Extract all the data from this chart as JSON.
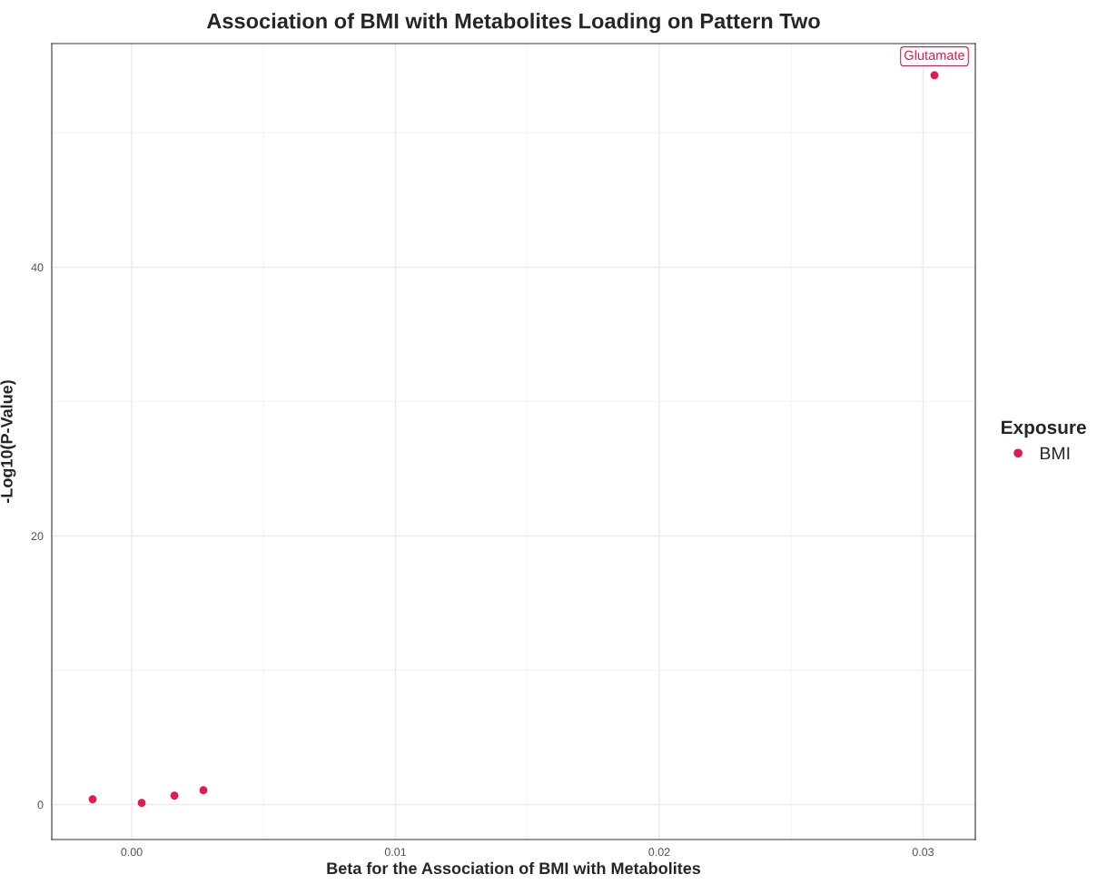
{
  "chart_data": {
    "type": "scatter",
    "title": "Association of BMI with Metabolites Loading on Pattern Two",
    "xlabel": "Beta for the Association of BMI with Metabolites",
    "ylabel": "-Log10(P-Value)",
    "legend_title": "Exposure",
    "series": [
      {
        "name": "BMI",
        "color": "#e41a4c",
        "x": [
          -0.00148,
          0.00038,
          0.00162,
          0.00272,
          0.03043
        ],
        "values": [
          0.4,
          0.13,
          0.67,
          1.07,
          54.3
        ]
      }
    ],
    "annotations": [
      {
        "text": "Glutamate",
        "x": 0.03043,
        "y": 54.3
      }
    ],
    "xlim": [
      -0.00303,
      0.03198
    ],
    "ylim": [
      -2.6,
      56.65
    ],
    "xticks": [
      {
        "value": 0,
        "label": "0.00"
      },
      {
        "value": 0.01,
        "label": "0.01"
      },
      {
        "value": 0.02,
        "label": "0.02"
      },
      {
        "value": 0.03,
        "label": "0.03"
      }
    ],
    "yticks": [
      0,
      20,
      40
    ],
    "grid": true,
    "legend": "right",
    "marker": "circle"
  }
}
